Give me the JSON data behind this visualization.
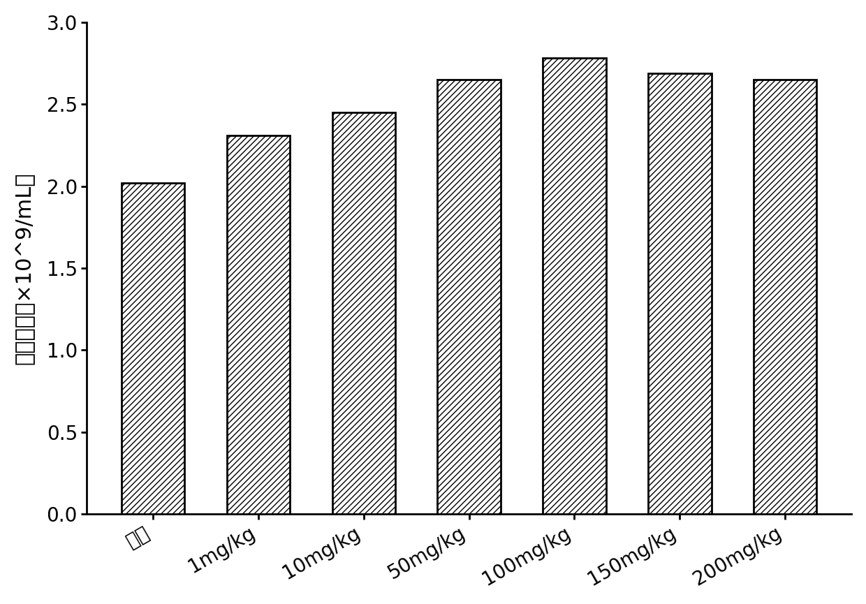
{
  "categories": [
    "对照",
    "1mg/kg",
    "10mg/kg",
    "50mg/kg",
    "100mg/kg",
    "150mg/kg",
    "200mg/kg"
  ],
  "values": [
    2.02,
    2.31,
    2.45,
    2.65,
    2.78,
    2.69,
    2.65
  ],
  "ylabel": "精子密度（×10^9/mL）",
  "ylim": [
    0.0,
    3.0
  ],
  "yticks": [
    0.0,
    0.5,
    1.0,
    1.5,
    2.0,
    2.5,
    3.0
  ],
  "bar_color": "#ffffff",
  "hatch_pattern": "////",
  "bar_edgecolor": "#000000",
  "background_color": "#ffffff",
  "bar_width": 0.6,
  "axis_fontsize": 22,
  "tick_fontsize": 20,
  "xlabel_rotation": 30,
  "linewidth": 2.0
}
